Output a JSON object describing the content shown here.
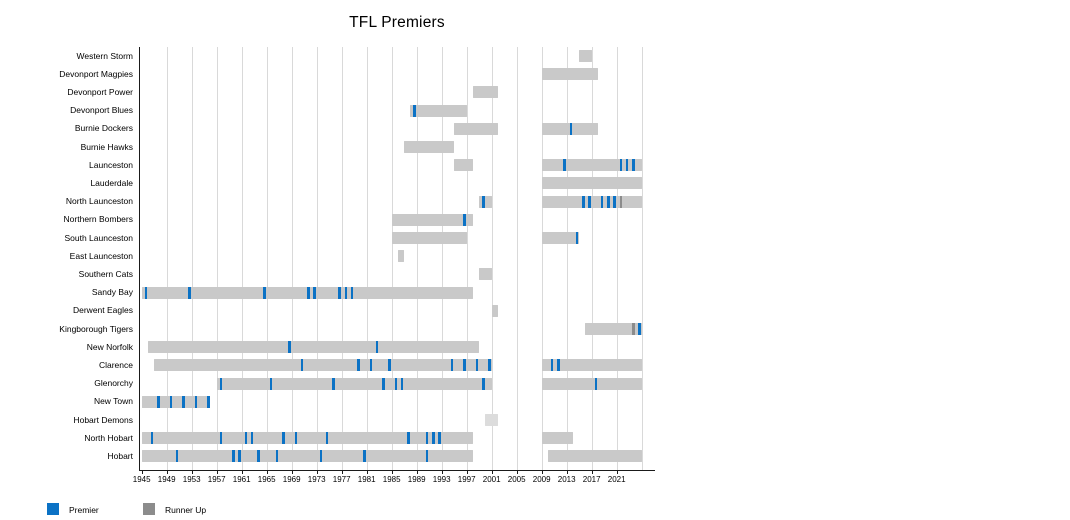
{
  "title": "TFL Premiers",
  "colors": {
    "premier": "#0b72c5",
    "runner_up": "#8c8c8c",
    "bar": "#c9c9c9",
    "bar_faint": "#dcdcdc",
    "gridline": "#d9d9d9",
    "axis": "#1a1a1a"
  },
  "legend": {
    "premier_label": "Premier",
    "runner_up_label": "Runner Up"
  },
  "axis": {
    "year_min": 1945,
    "year_max": 2025,
    "tick_step": 4,
    "tick_years": [
      1945,
      1949,
      1953,
      1957,
      1961,
      1965,
      1969,
      1973,
      1977,
      1981,
      1985,
      1989,
      1993,
      1997,
      2001,
      2005,
      2009,
      2013,
      2017,
      2021
    ],
    "tick_labels": [
      "1945",
      "1949",
      "1953",
      "1957",
      "1961",
      "1965",
      "1969",
      "1973",
      "1977",
      "1981",
      "1985",
      "1989",
      "1993",
      "1997",
      "2001",
      "2005",
      "2009",
      "2013",
      "2017",
      "2021"
    ]
  },
  "chart_data": {
    "type": "bar",
    "subtype": "horizontal-timeline-gantt",
    "title": "TFL Premiers",
    "xlabel": "",
    "ylabel": "",
    "grid": true,
    "legend_position": "bottom-left",
    "xlim": [
      1945,
      2025
    ],
    "series_legend": [
      "Premier",
      "Runner Up"
    ],
    "teams": [
      {
        "label": "Western Storm",
        "spans": [
          [
            2015,
            2016
          ]
        ],
        "premier_years": [],
        "runner_up_years": []
      },
      {
        "label": "Devonport Magpies",
        "spans": [
          [
            2009,
            2017
          ]
        ],
        "premier_years": [],
        "runner_up_years": []
      },
      {
        "label": "Devonport Power",
        "spans": [
          [
            1998,
            2001
          ]
        ],
        "premier_years": [],
        "runner_up_years": []
      },
      {
        "label": "Devonport Blues",
        "spans": [
          [
            1988,
            1996
          ]
        ],
        "premier_years": [
          1988
        ],
        "runner_up_years": []
      },
      {
        "label": "Burnie Dockers",
        "spans": [
          [
            1995,
            2001
          ],
          [
            2009,
            2017
          ]
        ],
        "premier_years": [
          2013
        ],
        "runner_up_years": []
      },
      {
        "label": "Burnie Hawks",
        "spans": [
          [
            1987,
            1994
          ]
        ],
        "premier_years": [],
        "runner_up_years": []
      },
      {
        "label": "Launceston",
        "spans": [
          [
            1995,
            1997
          ],
          [
            2009,
            2024
          ]
        ],
        "premier_years": [
          2012,
          2021,
          2022,
          2023
        ],
        "runner_up_years": []
      },
      {
        "label": "Lauderdale",
        "spans": [
          [
            2009,
            2024
          ]
        ],
        "premier_years": [],
        "runner_up_years": []
      },
      {
        "label": "North Launceston",
        "spans": [
          [
            1999,
            2000
          ],
          [
            2009,
            2024
          ]
        ],
        "premier_years": [
          1999,
          2015,
          2016,
          2018,
          2019,
          2020
        ],
        "runner_up_years": [
          2021
        ]
      },
      {
        "label": "Northern Bombers",
        "spans": [
          [
            1985,
            1997
          ]
        ],
        "premier_years": [
          1996
        ],
        "runner_up_years": []
      },
      {
        "label": "South Launceston",
        "spans": [
          [
            1985,
            1996
          ],
          [
            2009,
            2014
          ]
        ],
        "premier_years": [
          2014
        ],
        "runner_up_years": []
      },
      {
        "label": "East Launceston",
        "spans": [
          [
            1986,
            1986
          ]
        ],
        "premier_years": [],
        "runner_up_years": []
      },
      {
        "label": "Southern Cats",
        "spans": [
          [
            1999,
            2000
          ]
        ],
        "premier_years": [],
        "runner_up_years": []
      },
      {
        "label": "Sandy Bay",
        "spans": [
          [
            1945,
            1997
          ]
        ],
        "premier_years": [
          1945,
          1952,
          1964,
          1971,
          1972,
          1976,
          1977,
          1978
        ],
        "runner_up_years": []
      },
      {
        "label": "Derwent Eagles",
        "spans": [
          [
            2001,
            2001
          ]
        ],
        "premier_years": [],
        "runner_up_years": []
      },
      {
        "label": "Kingborough Tigers",
        "spans": [
          [
            2016,
            2024
          ]
        ],
        "premier_years": [
          2024
        ],
        "runner_up_years": [
          2023
        ]
      },
      {
        "label": "New Norfolk",
        "spans": [
          [
            1946,
            1998
          ]
        ],
        "premier_years": [
          1968,
          1982
        ],
        "runner_up_years": []
      },
      {
        "label": "Clarence",
        "spans": [
          [
            1947,
            2000
          ],
          [
            2009,
            2024
          ]
        ],
        "premier_years": [
          1970,
          1979,
          1981,
          1984,
          1994,
          1996,
          1998,
          2000,
          2010,
          2011
        ],
        "runner_up_years": []
      },
      {
        "label": "Glenorchy",
        "spans": [
          [
            1957,
            2000
          ],
          [
            2009,
            2024
          ]
        ],
        "premier_years": [
          1957,
          1965,
          1975,
          1983,
          1985,
          1986,
          1999,
          2017
        ],
        "runner_up_years": []
      },
      {
        "label": "New Town",
        "spans": [
          [
            1945,
            1955
          ]
        ],
        "premier_years": [
          1947,
          1949,
          1951,
          1953,
          1955
        ],
        "runner_up_years": []
      },
      {
        "label": "Hobart Demons",
        "spans": [
          [
            2000,
            2001
          ]
        ],
        "premier_years": [],
        "runner_up_years": [],
        "faint": true
      },
      {
        "label": "North Hobart",
        "spans": [
          [
            1945,
            1997
          ],
          [
            2009,
            2013
          ]
        ],
        "premier_years": [
          1946,
          1957,
          1961,
          1962,
          1967,
          1969,
          1974,
          1987,
          1990,
          1991,
          1992
        ],
        "runner_up_years": []
      },
      {
        "label": "Hobart",
        "spans": [
          [
            1945,
            1997
          ],
          [
            2010,
            2024
          ]
        ],
        "premier_years": [
          1950,
          1959,
          1960,
          1963,
          1966,
          1973,
          1980,
          1990
        ],
        "runner_up_years": []
      }
    ]
  }
}
